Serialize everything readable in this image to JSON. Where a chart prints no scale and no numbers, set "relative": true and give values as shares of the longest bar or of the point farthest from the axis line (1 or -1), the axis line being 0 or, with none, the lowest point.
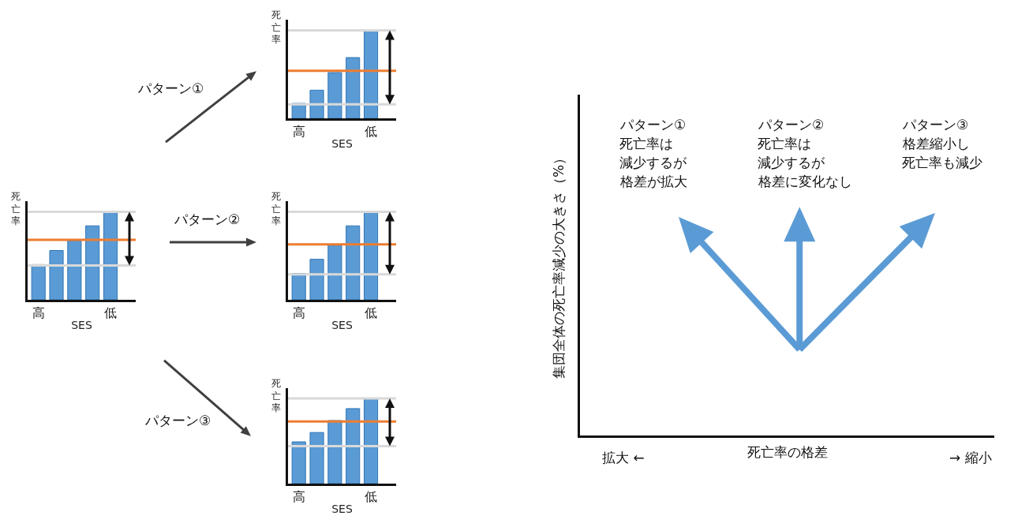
{
  "chart_data": [
    {
      "type": "bar",
      "relative": true,
      "categories": [
        "高",
        null,
        null,
        null,
        "低"
      ],
      "values": [
        0.4,
        0.56,
        0.67,
        0.84,
        1
      ],
      "color": "#5b9bd5",
      "xlabel": "SES",
      "ylabel": "死亡率",
      "ref_lines": [
        {
          "axis": "y",
          "value": 1,
          "color": "#d9d9d9"
        },
        {
          "axis": "y",
          "value": 0.39,
          "color": "#d9d9d9"
        },
        {
          "axis": "y",
          "value": 0.68,
          "color": "#ed7d31"
        }
      ]
    },
    {
      "type": "other",
      "annotations": [
        "パターン①",
        "パターン②",
        "パターン③"
      ]
    },
    {
      "type": "bar",
      "relative": true,
      "categories": [
        "高",
        null,
        null,
        null,
        "低"
      ],
      "values": [
        0.17,
        0.32,
        0.52,
        0.69,
        1
      ],
      "color": "#5b9bd5",
      "xlabel": "SES",
      "ylabel": "死亡率",
      "ref_lines": [
        {
          "axis": "y",
          "value": 1,
          "color": "#d9d9d9"
        },
        {
          "axis": "y",
          "value": 0.16,
          "color": "#d9d9d9"
        },
        {
          "axis": "y",
          "value": 0.54,
          "color": "#ed7d31"
        }
      ]
    },
    {
      "type": "bar",
      "relative": true,
      "categories": [
        "高",
        null,
        null,
        null,
        "低"
      ],
      "values": [
        0.3,
        0.46,
        0.62,
        0.84,
        1
      ],
      "color": "#5b9bd5",
      "xlabel": "SES",
      "ylabel": "死亡率",
      "ref_lines": [
        {
          "axis": "y",
          "value": 1,
          "color": "#d9d9d9"
        },
        {
          "axis": "y",
          "value": 0.29,
          "color": "#d9d9d9"
        },
        {
          "axis": "y",
          "value": 0.63,
          "color": "#ed7d31"
        }
      ]
    },
    {
      "type": "bar",
      "relative": true,
      "categories": [
        "高",
        null,
        null,
        null,
        "低"
      ],
      "values": [
        0.49,
        0.6,
        0.74,
        0.88,
        1
      ],
      "color": "#5b9bd5",
      "xlabel": "SES",
      "ylabel": "死亡率",
      "ref_lines": [
        {
          "axis": "y",
          "value": 1,
          "color": "#d9d9d9"
        },
        {
          "axis": "y",
          "value": 0.44,
          "color": "#d9d9d9"
        },
        {
          "axis": "y",
          "value": 0.73,
          "color": "#ed7d31"
        }
      ]
    },
    {
      "type": "other",
      "xlabel": "死亡率の格差",
      "ylabel": "集団全体の死亡率減少の大きさ（%）",
      "annotations": [
        "パターン①",
        "死亡率は",
        "減少するが",
        "格差が拡大",
        "パターン②",
        "死亡率は",
        "減少するが",
        "格差に変化なし",
        "パターン③",
        "格差縮小し",
        "死亡率も減少",
        "拡大 ←",
        "→ 縮小"
      ]
    }
  ]
}
